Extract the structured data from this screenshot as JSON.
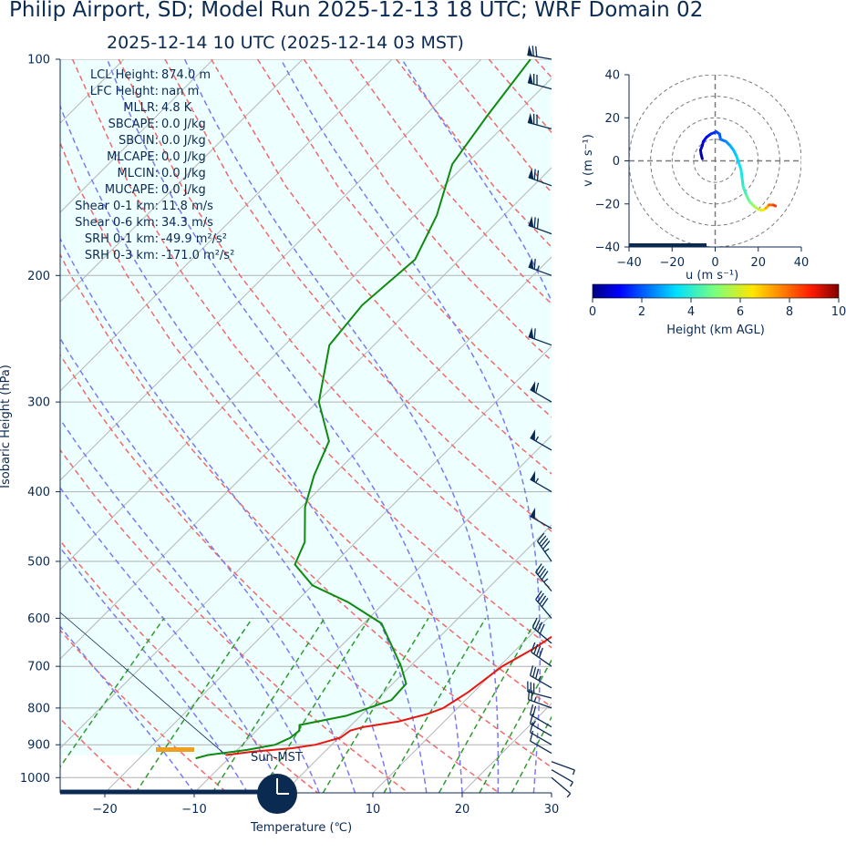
{
  "title": "Philip Airport, SD; Model Run 2025-12-13 18 UTC; WRF Domain 02",
  "subtitle": "2025-12-14 10 UTC  (2025-12-14 03 MST)",
  "parameters": [
    {
      "label": "LCL Height:",
      "value": "874.0 m"
    },
    {
      "label": "LFC Height:",
      "value": "nan m"
    },
    {
      "label": "MLLR:",
      "value": "4.8 K"
    },
    {
      "label": "SBCAPE:",
      "value": "0.0 J/kg"
    },
    {
      "label": "SBCIN:",
      "value": "0.0 J/kg"
    },
    {
      "label": "MLCAPE:",
      "value": "0.0 J/kg"
    },
    {
      "label": "MLCIN:",
      "value": "0.0 J/kg"
    },
    {
      "label": "MUCAPE:",
      "value": "0.0 J/kg"
    },
    {
      "label": "Shear 0-1 km:",
      "value": "11.8 m/s"
    },
    {
      "label": "Shear 0-6 km:",
      "value": "34.3 m/s"
    },
    {
      "label": "SRH 0-1 km:",
      "value": "-49.9 m²/s²"
    },
    {
      "label": "SRH 0-3 km:",
      "value": "-171.0 m²/s²"
    }
  ],
  "sun_label": "Sun-MST",
  "colors": {
    "text": "#0b2a52",
    "temperature": "#e8170f",
    "dewpoint": "#108a10",
    "dry_adiabat": "#f06a6a",
    "moist_adiabat": "#7a7af0",
    "mixing_ratio": "#2f9a2f",
    "cape_fill": "#eeffff",
    "lcl_marker": "#f0a020"
  },
  "chart_data": [
    {
      "type": "line",
      "name": "skew-T log-p sounding",
      "xlabel": "Temperature (℃)",
      "ylabel": "Isobaric Height (hPa)",
      "xlim": [
        -25,
        30
      ],
      "ylim": [
        1050,
        100
      ],
      "y_scale": "log",
      "skew": "45 degrees",
      "x_ticks": [
        -20,
        -10,
        0,
        10,
        20,
        30
      ],
      "x_tick_labels": [
        "−20",
        "−10",
        "0",
        "10",
        "20",
        "30"
      ],
      "y_ticks": [
        100,
        200,
        300,
        400,
        500,
        600,
        700,
        800,
        900,
        1000
      ],
      "grid": true,
      "series": [
        {
          "name": "temperature",
          "points": [
            {
              "p": 930,
              "t": -10.7
            },
            {
              "p": 920,
              "t": -8.0
            },
            {
              "p": 910,
              "t": -4.0
            },
            {
              "p": 900,
              "t": -1.8
            },
            {
              "p": 880,
              "t": 0.2
            },
            {
              "p": 860,
              "t": 0.5
            },
            {
              "p": 850,
              "t": 1.6
            },
            {
              "p": 835,
              "t": 4.9
            },
            {
              "p": 815,
              "t": 7.3
            },
            {
              "p": 800,
              "t": 8.4
            },
            {
              "p": 760,
              "t": 9.4
            },
            {
              "p": 700,
              "t": 10.3
            },
            {
              "p": 660,
              "t": 11.9
            },
            {
              "p": 620,
              "t": 13.0
            },
            {
              "p": 560,
              "t": 12.6
            },
            {
              "p": 500,
              "t": 11.7
            },
            {
              "p": 450,
              "t": 9.6
            },
            {
              "p": 400,
              "t": 6.4
            },
            {
              "p": 350,
              "t": 2.1
            },
            {
              "p": 320,
              "t": -0.7
            },
            {
              "p": 280,
              "t": -4.4
            },
            {
              "p": 245,
              "t": -7.9
            },
            {
              "p": 210,
              "t": -12.0
            },
            {
              "p": 185,
              "t": -12.9
            },
            {
              "p": 150,
              "t": -14.6
            },
            {
              "p": 125,
              "t": -17.9
            },
            {
              "p": 100,
              "t": -24.4
            }
          ]
        },
        {
          "name": "dewpoint",
          "points": [
            {
              "p": 940,
              "t": -13.7
            },
            {
              "p": 930,
              "t": -12.7
            },
            {
              "p": 915,
              "t": -8.9
            },
            {
              "p": 900,
              "t": -6.3
            },
            {
              "p": 880,
              "t": -5.4
            },
            {
              "p": 860,
              "t": -5.2
            },
            {
              "p": 845,
              "t": -5.8
            },
            {
              "p": 820,
              "t": -1.6
            },
            {
              "p": 780,
              "t": 1.7
            },
            {
              "p": 740,
              "t": 1.5
            },
            {
              "p": 700,
              "t": -1.0
            },
            {
              "p": 660,
              "t": -4.0
            },
            {
              "p": 610,
              "t": -8.0
            },
            {
              "p": 570,
              "t": -14.1
            },
            {
              "p": 540,
              "t": -20.0
            },
            {
              "p": 505,
              "t": -24.3
            },
            {
              "p": 470,
              "t": -25.7
            },
            {
              "p": 420,
              "t": -29.6
            },
            {
              "p": 380,
              "t": -32.1
            },
            {
              "p": 340,
              "t": -34.3
            },
            {
              "p": 300,
              "t": -39.8
            },
            {
              "p": 250,
              "t": -45.0
            },
            {
              "p": 220,
              "t": -45.8
            },
            {
              "p": 190,
              "t": -45.0
            },
            {
              "p": 165,
              "t": -47.5
            },
            {
              "p": 140,
              "t": -51.5
            },
            {
              "p": 120,
              "t": -53.0
            },
            {
              "p": 100,
              "t": -54.5
            }
          ]
        }
      ],
      "lcl_pressure": 912,
      "wind_barbs_right_edge": [
        {
          "p": 1000,
          "speed": 6,
          "direction": 130
        },
        {
          "p": 975,
          "speed": 6,
          "direction": 120
        },
        {
          "p": 950,
          "speed": 7,
          "direction": 110
        },
        {
          "p": 925,
          "speed": 12,
          "direction": 300
        },
        {
          "p": 900,
          "speed": 14,
          "direction": 300
        },
        {
          "p": 875,
          "speed": 17,
          "direction": 300
        },
        {
          "p": 850,
          "speed": 20,
          "direction": 300
        },
        {
          "p": 800,
          "speed": 25,
          "direction": 290
        },
        {
          "p": 775,
          "speed": 30,
          "direction": 285
        },
        {
          "p": 750,
          "speed": 35,
          "direction": 300
        },
        {
          "p": 700,
          "speed": 40,
          "direction": 305
        },
        {
          "p": 650,
          "speed": 40,
          "direction": 310
        },
        {
          "p": 600,
          "speed": 40,
          "direction": 320
        },
        {
          "p": 550,
          "speed": 45,
          "direction": 320
        },
        {
          "p": 500,
          "speed": 45,
          "direction": 325
        },
        {
          "p": 450,
          "speed": 50,
          "direction": 300
        },
        {
          "p": 400,
          "speed": 55,
          "direction": 300
        },
        {
          "p": 350,
          "speed": 55,
          "direction": 300
        },
        {
          "p": 300,
          "speed": 60,
          "direction": 300
        },
        {
          "p": 250,
          "speed": 60,
          "direction": 290
        },
        {
          "p": 200,
          "speed": 65,
          "direction": 290
        },
        {
          "p": 175,
          "speed": 70,
          "direction": 290
        },
        {
          "p": 150,
          "speed": 70,
          "direction": 290
        },
        {
          "p": 125,
          "speed": 70,
          "direction": 285
        },
        {
          "p": 110,
          "speed": 70,
          "direction": 285
        },
        {
          "p": 100,
          "speed": 70,
          "direction": 280
        }
      ]
    },
    {
      "type": "scatter",
      "name": "hodograph",
      "xlabel": "u (m s⁻¹)",
      "ylabel": "v (m s⁻¹)",
      "xlim": [
        -40,
        40
      ],
      "ylim": [
        -40,
        40
      ],
      "x_ticks": [
        -40,
        -20,
        0,
        20,
        40
      ],
      "y_ticks": [
        -40,
        -20,
        0,
        20,
        40
      ],
      "range_rings": [
        10,
        20,
        30,
        40
      ],
      "colorbar": {
        "label": "Height (km AGL)",
        "range": [
          0,
          10
        ],
        "ticks": [
          0,
          2,
          4,
          6,
          8,
          10
        ],
        "colormap": "jet"
      },
      "points": [
        {
          "u": -6.0,
          "v": 1.0,
          "h": 0.0
        },
        {
          "u": -6.5,
          "v": 3.0,
          "h": 0.2
        },
        {
          "u": -6.8,
          "v": 5.0,
          "h": 0.4
        },
        {
          "u": -6.0,
          "v": 7.0,
          "h": 0.6
        },
        {
          "u": -5.5,
          "v": 9.0,
          "h": 0.8
        },
        {
          "u": -4.0,
          "v": 11.0,
          "h": 1.0
        },
        {
          "u": -2.0,
          "v": 12.5,
          "h": 1.2
        },
        {
          "u": 0.5,
          "v": 13.5,
          "h": 1.5
        },
        {
          "u": 2.0,
          "v": 12.5,
          "h": 1.8
        },
        {
          "u": 2.5,
          "v": 10.0,
          "h": 2.0
        },
        {
          "u": 5.0,
          "v": 9.0,
          "h": 2.3
        },
        {
          "u": 7.0,
          "v": 7.0,
          "h": 2.6
        },
        {
          "u": 8.5,
          "v": 5.0,
          "h": 2.9
        },
        {
          "u": 10.0,
          "v": 2.0,
          "h": 3.1
        },
        {
          "u": 11.0,
          "v": -1.0,
          "h": 3.3
        },
        {
          "u": 12.0,
          "v": -4.0,
          "h": 3.5
        },
        {
          "u": 12.5,
          "v": -8.0,
          "h": 3.7
        },
        {
          "u": 13.0,
          "v": -12.0,
          "h": 3.9
        },
        {
          "u": 14.5,
          "v": -16.0,
          "h": 4.2
        },
        {
          "u": 16.0,
          "v": -19.0,
          "h": 4.6
        },
        {
          "u": 18.0,
          "v": -21.0,
          "h": 5.0
        },
        {
          "u": 20.0,
          "v": -22.5,
          "h": 5.5
        },
        {
          "u": 22.0,
          "v": -23.0,
          "h": 6.0
        },
        {
          "u": 23.5,
          "v": -22.0,
          "h": 6.5
        },
        {
          "u": 25.0,
          "v": -20.5,
          "h": 7.2
        },
        {
          "u": 27.0,
          "v": -20.5,
          "h": 8.0
        },
        {
          "u": 28.0,
          "v": -21.0,
          "h": 8.5
        }
      ]
    }
  ]
}
